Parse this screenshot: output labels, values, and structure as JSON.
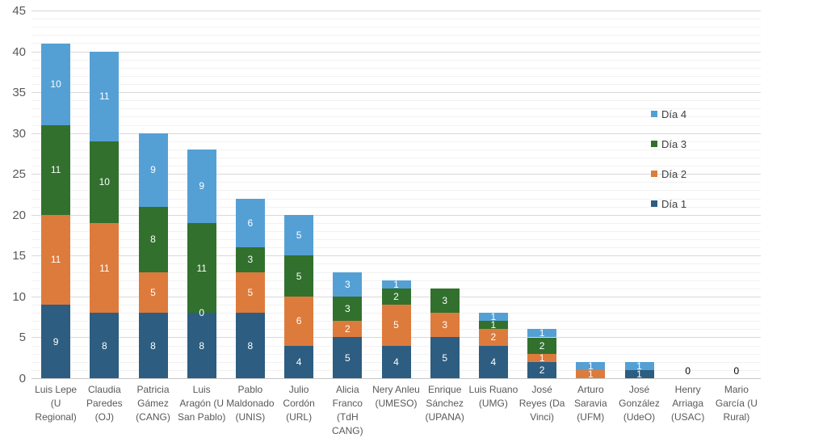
{
  "chart_data": {
    "type": "bar",
    "subtype": "stacked-column",
    "title": "",
    "xlabel": "",
    "ylabel": "",
    "ylim": [
      0,
      45
    ],
    "y_major_ticks": [
      0,
      5,
      10,
      15,
      20,
      25,
      30,
      35,
      40,
      45
    ],
    "y_minor_unit": 1,
    "grid": true,
    "legend_position": "right",
    "legend_order_top_to_bottom": [
      "Día 4",
      "Día 3",
      "Día 2",
      "Día 1"
    ],
    "categories": [
      "Luis Lepe (U Regional)",
      "Claudia Paredes (OJ)",
      "Patricia Gámez (CANG)",
      "Luis Aragón (U San Pablo)",
      "Pablo Maldonado (UNIS)",
      "Julio Cordón (URL)",
      "Alicia Franco (TdH CANG)",
      "Nery Anleu (UMESO)",
      "Enrique Sánchez (UPANA)",
      "Luis Ruano (UMG)",
      "José Reyes (Da Vinci)",
      "Arturo Saravia (UFM)",
      "José González (UdeO)",
      "Henry Arriaga (USAC)",
      "Mario García (U Rural)"
    ],
    "category_label_lines": [
      [
        "Luis Lepe",
        "(U",
        "Regional)"
      ],
      [
        "Claudia",
        "Paredes",
        "(OJ)"
      ],
      [
        "Patricia",
        "Gámez",
        "(CANG)"
      ],
      [
        "Luis",
        "Aragón (U",
        "San Pablo)"
      ],
      [
        "Pablo",
        "Maldonado",
        "(UNIS)"
      ],
      [
        "Julio",
        "Cordón",
        "(URL)"
      ],
      [
        "Alicia",
        "Franco",
        "(TdH",
        "CANG)"
      ],
      [
        "Nery Anleu",
        "(UMESO)"
      ],
      [
        "Enrique",
        "Sánchez",
        "(UPANA)"
      ],
      [
        "Luis Ruano",
        "(UMG)"
      ],
      [
        "José",
        "Reyes (Da",
        "Vinci)"
      ],
      [
        "Arturo",
        "Saravia",
        "(UFM)"
      ],
      [
        "José",
        "González",
        "(UdeO)"
      ],
      [
        "Henry",
        "Arriaga",
        "(USAC)"
      ],
      [
        "Mario",
        "García (U",
        "Rural)"
      ]
    ],
    "series": [
      {
        "name": "Día 1",
        "color": "#2D5D80",
        "values": [
          9,
          8,
          8,
          8,
          8,
          4,
          5,
          4,
          5,
          4,
          2,
          0,
          1,
          0,
          0
        ]
      },
      {
        "name": "Día 2",
        "color": "#DD7B3C",
        "values": [
          11,
          11,
          5,
          0,
          5,
          6,
          2,
          5,
          3,
          2,
          1,
          1,
          0,
          0,
          0
        ]
      },
      {
        "name": "Día 3",
        "color": "#32702E",
        "values": [
          11,
          10,
          8,
          11,
          3,
          5,
          3,
          2,
          3,
          1,
          2,
          0,
          0,
          0,
          0
        ]
      },
      {
        "name": "Día 4",
        "color": "#54A0D5",
        "values": [
          10,
          11,
          9,
          9,
          6,
          5,
          3,
          1,
          0,
          1,
          1,
          1,
          1,
          0,
          0
        ]
      }
    ],
    "totals": [
      41,
      40,
      30,
      28,
      22,
      20,
      13,
      12,
      11,
      8,
      6,
      2,
      2,
      0,
      0
    ],
    "visible_zero_labels": [
      {
        "category": "Luis Aragón (U San Pablo)",
        "series": "Día 2",
        "text": "0",
        "color": "#FFFFFF"
      },
      {
        "category": "Henry Arriaga (USAC)",
        "series": null,
        "text": "0",
        "color": "#000000"
      },
      {
        "category": "Mario García (U Rural)",
        "series": null,
        "text": "0",
        "color": "#000000"
      }
    ],
    "colors": {
      "grid_major": "#D9D9D9",
      "grid_minor": "#F2F2F2",
      "axis_line": "#C6C6C6",
      "tick_text": "#595959",
      "legend_text": "#404040",
      "bar_label_text": "#FFFFFF"
    }
  }
}
